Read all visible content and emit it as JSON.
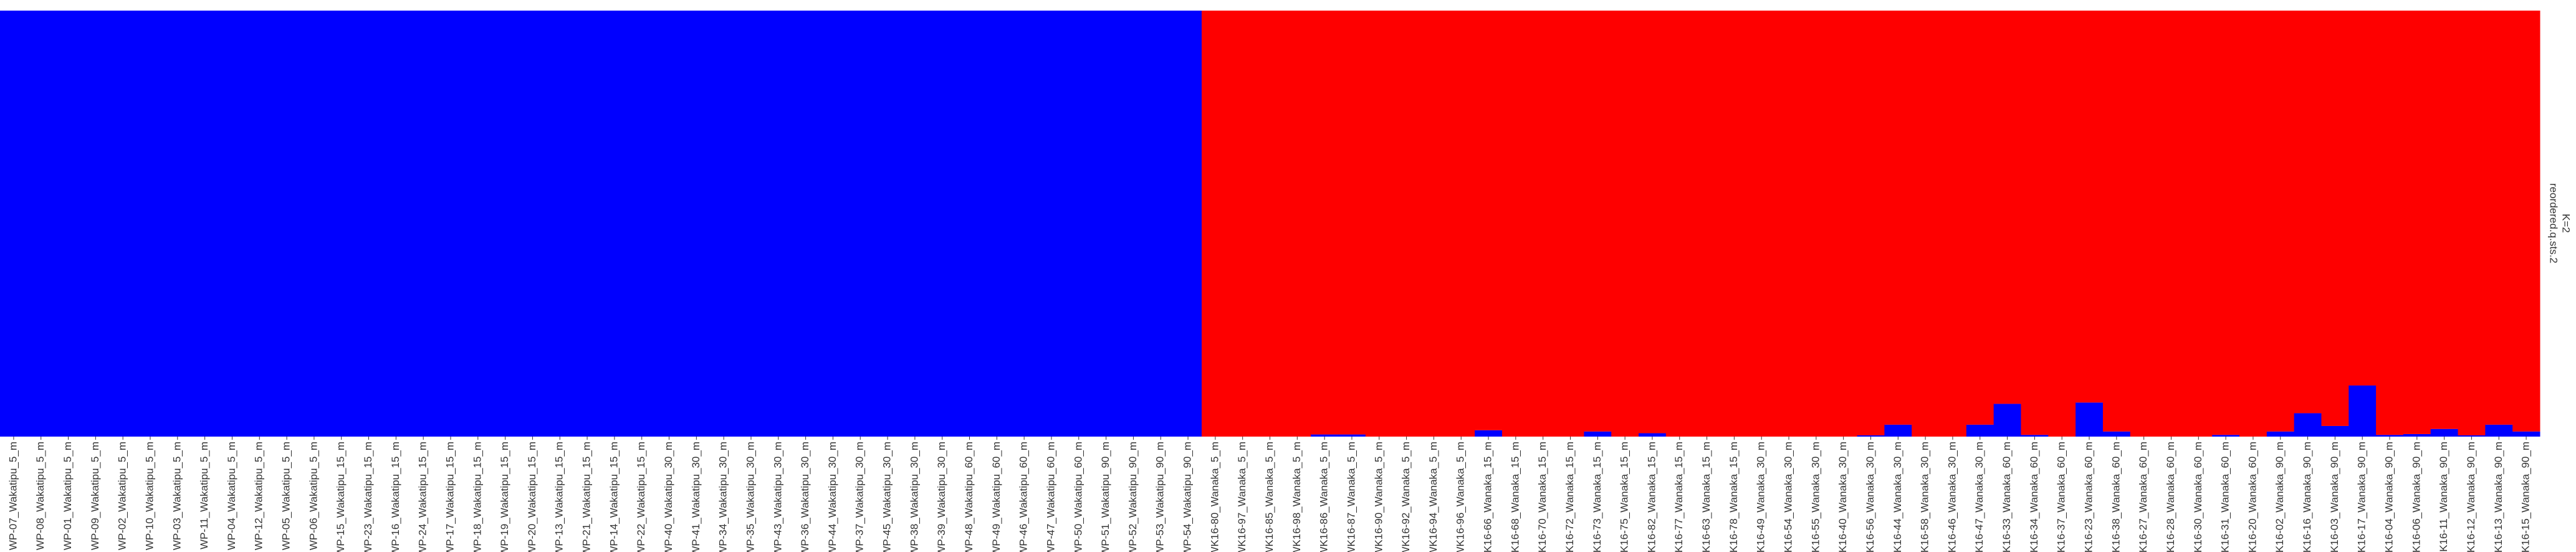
{
  "chart_data": {
    "type": "bar",
    "stacked": true,
    "strip": [
      "reordered.q.sts.2",
      "K=2"
    ],
    "categories": [
      "WP-07_Wakatipu_5_m",
      "WP-08_Wakatipu_5_m",
      "WP-01_Wakatipu_5_m",
      "WP-09_Wakatipu_5_m",
      "WP-02_Wakatipu_5_m",
      "WP-10_Wakatipu_5_m",
      "WP-03_Wakatipu_5_m",
      "WP-11_Wakatipu_5_m",
      "WP-04_Wakatipu_5_m",
      "WP-12_Wakatipu_5_m",
      "WP-05_Wakatipu_5_m",
      "WP-06_Wakatipu_5_m",
      "WP-15_Wakatipu_15_m",
      "WP-23_Wakatipu_15_m",
      "WP-16_Wakatipu_15_m",
      "WP-24_Wakatipu_15_m",
      "WP-17_Wakatipu_15_m",
      "WP-18_Wakatipu_15_m",
      "WP-19_Wakatipu_15_m",
      "WP-20_Wakatipu_15_m",
      "WP-13_Wakatipu_15_m",
      "WP-21_Wakatipu_15_m",
      "WP-14_Wakatipu_15_m",
      "WP-22_Wakatipu_15_m",
      "WP-40_Wakatipu_30_m",
      "WP-41_Wakatipu_30_m",
      "WP-34_Wakatipu_30_m",
      "WP-35_Wakatipu_30_m",
      "WP-43_Wakatipu_30_m",
      "WP-36_Wakatipu_30_m",
      "WP-44_Wakatipu_30_m",
      "WP-37_Wakatipu_30_m",
      "WP-45_Wakatipu_30_m",
      "WP-38_Wakatipu_30_m",
      "WP-39_Wakatipu_30_m",
      "WP-48_Wakatipu_60_m",
      "WP-49_Wakatipu_60_m",
      "WP-46_Wakatipu_60_m",
      "WP-47_Wakatipu_60_m",
      "WP-50_Wakatipu_60_m",
      "WP-51_Wakatipu_90_m",
      "WP-52_Wakatipu_90_m",
      "WP-53_Wakatipu_90_m",
      "WP-54_Wakatipu_90_m",
      "WK16-80_Wanaka_5_m",
      "WK16-97_Wanaka_5_m",
      "WK16-85_Wanaka_5_m",
      "WK16-98_Wanaka_5_m",
      "WK16-86_Wanaka_5_m",
      "WK16-87_Wanaka_5_m",
      "WK16-90_Wanaka_5_m",
      "WK16-92_Wanaka_5_m",
      "WK16-94_Wanaka_5_m",
      "WK16-96_Wanaka_5_m",
      "WK16-66_Wanaka_15_m",
      "WK16-68_Wanaka_15_m",
      "WK16-70_Wanaka_15_m",
      "WK16-72_Wanaka_15_m",
      "WK16-73_Wanaka_15_m",
      "WK16-75_Wanaka_15_m",
      "WK16-82_Wanaka_15_m",
      "WK16-77_Wanaka_15_m",
      "WK16-63_Wanaka_15_m",
      "WK16-78_Wanaka_15_m",
      "WK16-49_Wanaka_30_m",
      "WK16-54_Wanaka_30_m",
      "WK16-55_Wanaka_30_m",
      "WK16-40_Wanaka_30_m",
      "WK16-56_Wanaka_30_m",
      "WK16-44_Wanaka_30_m",
      "WK16-58_Wanaka_30_m",
      "WK16-46_Wanaka_30_m",
      "WK16-47_Wanaka_30_m",
      "WK16-33_Wanaka_60_m",
      "WK16-34_Wanaka_60_m",
      "WK16-37_Wanaka_60_m",
      "WK16-23_Wanaka_60_m",
      "WK16-38_Wanaka_60_m",
      "WK16-27_Wanaka_60_m",
      "WK16-28_Wanaka_60_m",
      "WK16-30_Wanaka_60_m",
      "WK16-31_Wanaka_60_m",
      "WK16-20_Wanaka_60_m",
      "WK16-02_Wanaka_90_m",
      "WK16-16_Wanaka_90_m",
      "WK16-03_Wanaka_90_m",
      "WK16-17_Wanaka_90_m",
      "WK16-04_Wanaka_90_m",
      "WK16-06_Wanaka_90_m",
      "WK16-11_Wanaka_90_m",
      "WK16-12_Wanaka_90_m",
      "WK16-13_Wanaka_90_m",
      "WK16-15_Wanaka_90_m"
    ],
    "series": [
      {
        "color": "#0000ff",
        "values": [
          1,
          1,
          1,
          1,
          1,
          1,
          1,
          1,
          1,
          1,
          1,
          1,
          1,
          1,
          1,
          1,
          1,
          1,
          1,
          1,
          1,
          1,
          1,
          1,
          1,
          1,
          1,
          1,
          1,
          1,
          1,
          1,
          1,
          1,
          1,
          1,
          1,
          1,
          1,
          1,
          1,
          1,
          1,
          1,
          0,
          0,
          0,
          0,
          0.005,
          0.005,
          0,
          0,
          0,
          0,
          0.015,
          0,
          0,
          0,
          0.012,
          0,
          0.008,
          0,
          0,
          0,
          0,
          0,
          0,
          0,
          0.003,
          0.028,
          0,
          0,
          0.028,
          0.077,
          0.004,
          0,
          0.08,
          0.012,
          0,
          0,
          0,
          0.004,
          0,
          0.012,
          0.055,
          0.025,
          0.12,
          0.004,
          0.006,
          0.018,
          0.003,
          0.028,
          0.012
        ]
      },
      {
        "color": "#fe0000",
        "values": [
          0,
          0,
          0,
          0,
          0,
          0,
          0,
          0,
          0,
          0,
          0,
          0,
          0,
          0,
          0,
          0,
          0,
          0,
          0,
          0,
          0,
          0,
          0,
          0,
          0,
          0,
          0,
          0,
          0,
          0,
          0,
          0,
          0,
          0,
          0,
          0,
          0,
          0,
          0,
          0,
          0,
          0,
          0,
          0,
          1,
          1,
          1,
          1,
          0.995,
          0.995,
          1,
          1,
          1,
          1,
          0.985,
          1,
          1,
          1,
          0.988,
          1,
          0.992,
          1,
          1,
          1,
          1,
          1,
          1,
          1,
          0.997,
          0.972,
          1,
          1,
          0.972,
          0.923,
          0.996,
          1,
          0.92,
          0.988,
          1,
          1,
          1,
          0.996,
          1,
          0.988,
          0.945,
          0.975,
          0.88,
          0.996,
          0.994,
          0.982,
          0.997,
          0.972,
          0.988
        ]
      }
    ],
    "ylim": [
      0,
      1
    ]
  }
}
